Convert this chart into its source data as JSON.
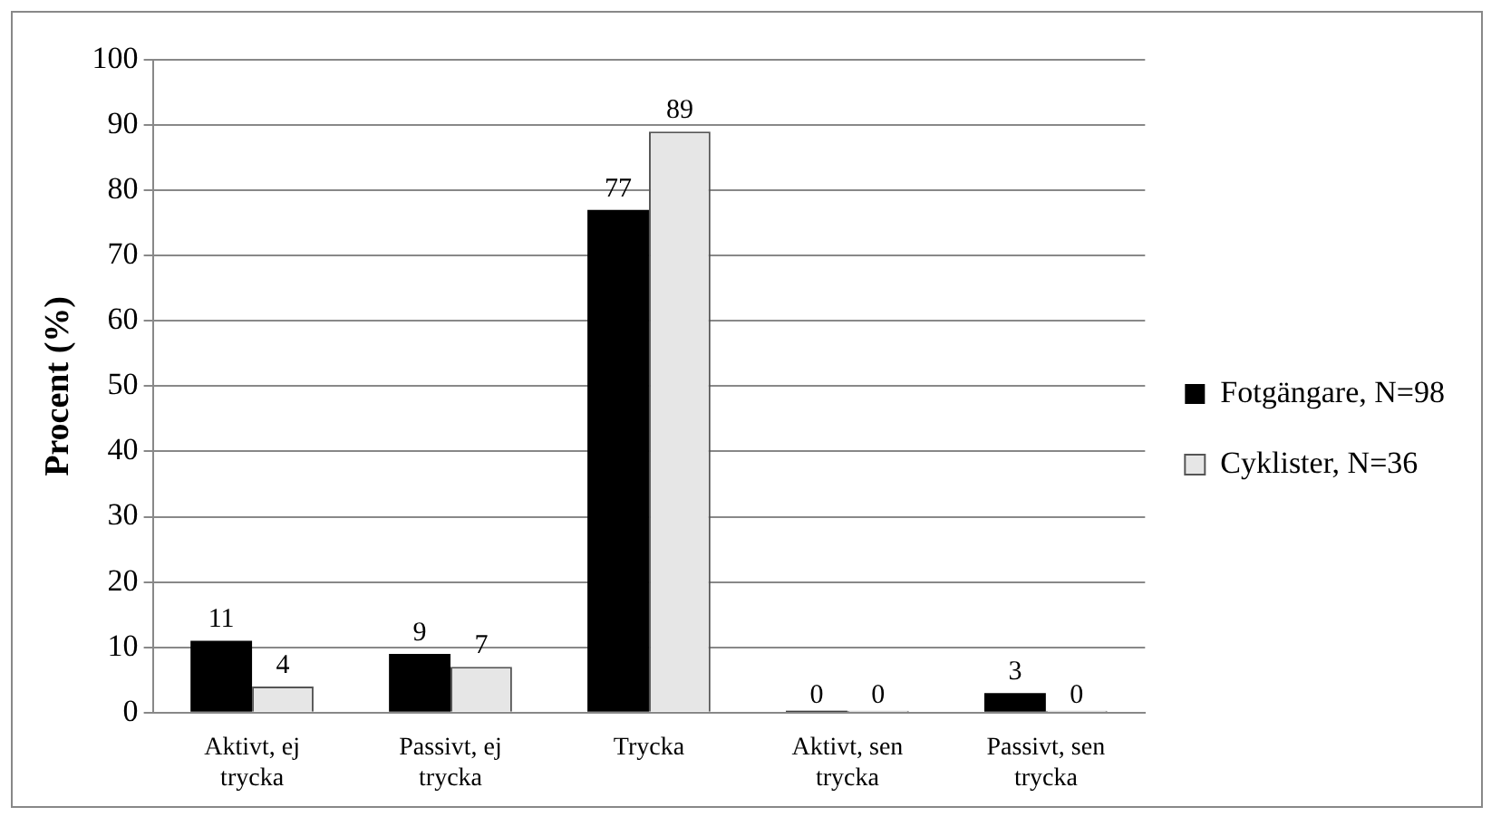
{
  "chart_data": {
    "type": "bar",
    "ylabel": "Procent (%)",
    "categories": [
      "Aktivt, ej trycka",
      "Passivt, ej trycka",
      "Trycka",
      "Aktivt, sen trycka",
      "Passivt, sen trycka"
    ],
    "series": [
      {
        "name": "Fotgängare, N=98",
        "color": "#000000",
        "values": [
          11,
          9,
          77,
          0,
          3
        ]
      },
      {
        "name": "Cyklister, N=36",
        "color": "#e6e6e6",
        "values": [
          4,
          7,
          89,
          0,
          0
        ]
      }
    ],
    "ylim": [
      0,
      100
    ],
    "yticks": [
      0,
      10,
      20,
      30,
      40,
      50,
      60,
      70,
      80,
      90,
      100
    ],
    "grid": "y",
    "legend": "right",
    "data_labels": true
  }
}
